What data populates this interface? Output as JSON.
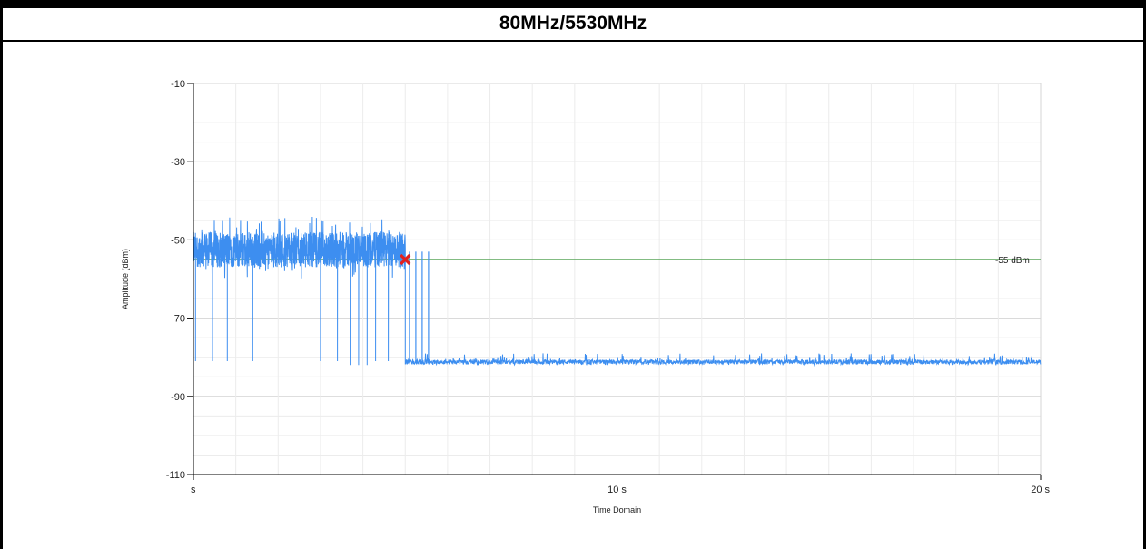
{
  "title": "80MHz/5530MHz",
  "colors": {
    "signal": "#3d8ef0",
    "threshold": "#5aa65a",
    "marker": "#e02020",
    "grid_major": "#d4d4d4",
    "grid_minor": "#ececec",
    "axis": "#000000"
  },
  "chart_data": {
    "type": "line",
    "title": "80MHz/5530MHz",
    "xlabel": "Time Domain",
    "ylabel": "Amplitude (dBm)",
    "xlim": [
      0,
      20
    ],
    "ylim": [
      -110,
      -10
    ],
    "x_ticks": [
      {
        "value": 0,
        "label": "s"
      },
      {
        "value": 10,
        "label": "10 s"
      },
      {
        "value": 20,
        "label": "20 s"
      }
    ],
    "y_ticks": [
      {
        "value": -10,
        "label": "-10"
      },
      {
        "value": -30,
        "label": "-30"
      },
      {
        "value": -50,
        "label": "-50"
      },
      {
        "value": -70,
        "label": "-70"
      },
      {
        "value": -90,
        "label": "-90"
      },
      {
        "value": -110,
        "label": "-110"
      }
    ],
    "grid": true,
    "legend": "none",
    "reference_line": {
      "y": -55,
      "label": "-55 dBm"
    },
    "marker": {
      "type": "x",
      "x": 5.0,
      "y": -55
    },
    "series": [
      {
        "segments": [
          {
            "x_start": 0.0,
            "x_end": 5.0,
            "mean": -52.5,
            "spread": 4.5,
            "peak_max": -44,
            "peak_min": -60
          },
          {
            "x_start": 5.0,
            "x_end": 20.0,
            "mean": -81.2,
            "spread": 0.6,
            "peak_max": -79,
            "peak_min": -82
          }
        ],
        "dropouts": [
          {
            "x": 0.05,
            "y": -81
          },
          {
            "x": 0.45,
            "y": -81
          },
          {
            "x": 0.8,
            "y": -81
          },
          {
            "x": 1.4,
            "y": -81
          },
          {
            "x": 3.0,
            "y": -81
          },
          {
            "x": 3.4,
            "y": -81
          },
          {
            "x": 3.7,
            "y": -82
          },
          {
            "x": 3.9,
            "y": -82
          },
          {
            "x": 4.1,
            "y": -82
          },
          {
            "x": 4.3,
            "y": -81
          },
          {
            "x": 4.6,
            "y": -81
          }
        ],
        "transition_spikes": [
          {
            "x": 5.1,
            "y": -53
          },
          {
            "x": 5.25,
            "y": -53
          },
          {
            "x": 5.4,
            "y": -53
          },
          {
            "x": 5.55,
            "y": -53
          }
        ]
      }
    ]
  }
}
